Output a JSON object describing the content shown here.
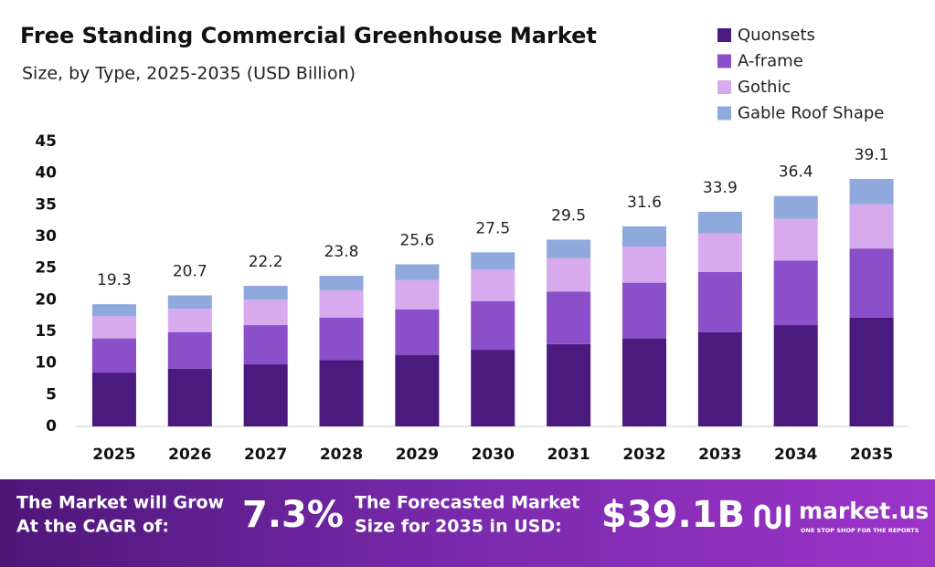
{
  "chart_data": {
    "type": "stacked_bar",
    "title": "Free Standing Commercial Greenhouse Market",
    "subtitle": "Size, by Type, 2025-2035 (USD Billion)",
    "categories": [
      "2025",
      "2026",
      "2027",
      "2028",
      "2029",
      "2030",
      "2031",
      "2032",
      "2033",
      "2034",
      "2035"
    ],
    "series": [
      {
        "name": "Quonsets",
        "color": "#4b1a7f",
        "values": [
          8.5,
          9.1,
          9.8,
          10.5,
          11.3,
          12.1,
          13.0,
          13.9,
          14.9,
          16.0,
          17.2
        ]
      },
      {
        "name": "A-frame",
        "color": "#8a4fc9",
        "values": [
          5.4,
          5.8,
          6.2,
          6.7,
          7.2,
          7.7,
          8.3,
          8.8,
          9.5,
          10.2,
          10.9
        ]
      },
      {
        "name": "Gothic",
        "color": "#d7aaee",
        "values": [
          3.5,
          3.7,
          4.0,
          4.3,
          4.6,
          5.0,
          5.3,
          5.7,
          6.1,
          6.6,
          7.0
        ]
      },
      {
        "name": "Gable Roof Shape",
        "color": "#8fa9dc",
        "values": [
          1.9,
          2.1,
          2.2,
          2.3,
          2.5,
          2.7,
          2.9,
          3.2,
          3.4,
          3.6,
          4.0
        ]
      }
    ],
    "totals": [
      19.3,
      20.7,
      22.2,
      23.8,
      25.6,
      27.5,
      29.5,
      31.6,
      33.9,
      36.4,
      39.1
    ],
    "ylim": [
      0,
      45
    ],
    "yticks": [
      0,
      5,
      10,
      15,
      20,
      25,
      30,
      35,
      40,
      45
    ],
    "grid": false,
    "legend": "top-right"
  },
  "footer": {
    "cagr_text_1": "The Market will Grow",
    "cagr_text_2": "At the CAGR of:",
    "cagr": "7.3%",
    "forecast_text_1": "The Forecasted Market",
    "forecast_text_2": "Size for 2035 in USD:",
    "forecast": "$39.1B",
    "brand": "market.us",
    "tagline": "ONE STOP SHOP FOR THE REPORTS"
  }
}
